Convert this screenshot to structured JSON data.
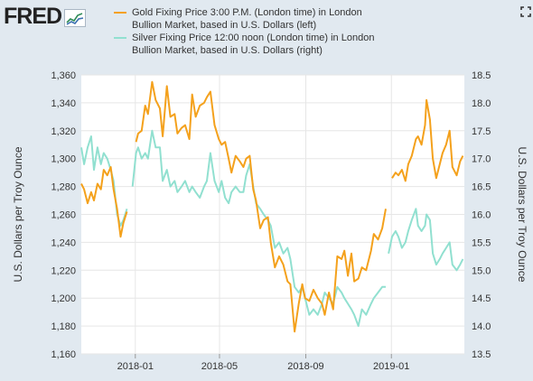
{
  "logo": {
    "text": "FRED"
  },
  "legend": [
    {
      "label": "Gold Fixing Price 3:00 P.M. (London time) in London Bullion Market, based in U.S. Dollars (left)",
      "color": "#f4a11c"
    },
    {
      "label": "Silver Fixing Price 12:00 noon (London time) in London Bullion Market, based in U.S. Dollars (right)",
      "color": "#91e0d0"
    }
  ],
  "icons": {
    "logo": "line-chart-icon",
    "fullscreen": "fullscreen-icon"
  },
  "chart_data": {
    "type": "line",
    "x_ticks": [
      "2018-01",
      "2018-05",
      "2018-09",
      "2019-01"
    ],
    "x_range": [
      "2017-10-16",
      "2019-04-15"
    ],
    "y_left": {
      "label": "U.S. Dollars per Troy Ounce",
      "ticks": [
        "1,160",
        "1,180",
        "1,200",
        "1,220",
        "1,240",
        "1,260",
        "1,280",
        "1,300",
        "1,320",
        "1,340",
        "1,360"
      ],
      "range": [
        1160,
        1360
      ]
    },
    "y_right": {
      "label": "U.S. Dollars per Troy Ounce",
      "ticks": [
        "13.5",
        "14.0",
        "14.5",
        "15.0",
        "15.5",
        "16.0",
        "16.5",
        "17.0",
        "17.5",
        "18.0",
        "18.5"
      ],
      "range": [
        13.5,
        18.5
      ]
    },
    "grid": true,
    "series": [
      {
        "name": "Gold Fixing Price 3:00 P.M. (London time) in London Bullion Market, based in U.S. Dollars (left)",
        "axis": "left",
        "color": "#f4a11c",
        "segments": [
          [
            [
              "2017-10-16",
              1282
            ],
            [
              "2017-10-20",
              1278
            ],
            [
              "2017-10-25",
              1268
            ],
            [
              "2017-10-30",
              1276
            ],
            [
              "2017-11-03",
              1270
            ],
            [
              "2017-11-08",
              1282
            ],
            [
              "2017-11-13",
              1278
            ],
            [
              "2017-11-17",
              1292
            ],
            [
              "2017-11-22",
              1288
            ],
            [
              "2017-11-27",
              1294
            ],
            [
              "2017-12-01",
              1278
            ],
            [
              "2017-12-06",
              1264
            ],
            [
              "2017-12-11",
              1244
            ],
            [
              "2017-12-15",
              1254
            ],
            [
              "2017-12-20",
              1262
            ]
          ],
          [
            [
              "2018-01-02",
              1312
            ],
            [
              "2018-01-05",
              1318
            ],
            [
              "2018-01-10",
              1320
            ],
            [
              "2018-01-15",
              1338
            ],
            [
              "2018-01-19",
              1332
            ],
            [
              "2018-01-25",
              1355
            ],
            [
              "2018-01-30",
              1342
            ],
            [
              "2018-02-05",
              1336
            ],
            [
              "2018-02-09",
              1316
            ],
            [
              "2018-02-15",
              1352
            ],
            [
              "2018-02-20",
              1330
            ],
            [
              "2018-02-26",
              1332
            ],
            [
              "2018-03-02",
              1318
            ],
            [
              "2018-03-08",
              1322
            ],
            [
              "2018-03-13",
              1324
            ],
            [
              "2018-03-19",
              1314
            ],
            [
              "2018-03-23",
              1346
            ],
            [
              "2018-03-28",
              1330
            ],
            [
              "2018-04-03",
              1338
            ],
            [
              "2018-04-09",
              1340
            ],
            [
              "2018-04-13",
              1344
            ],
            [
              "2018-04-18",
              1348
            ],
            [
              "2018-04-24",
              1324
            ],
            [
              "2018-04-30",
              1314
            ],
            [
              "2018-05-04",
              1310
            ],
            [
              "2018-05-09",
              1312
            ],
            [
              "2018-05-14",
              1300
            ],
            [
              "2018-05-18",
              1290
            ],
            [
              "2018-05-24",
              1302
            ],
            [
              "2018-05-30",
              1298
            ],
            [
              "2018-06-04",
              1294
            ],
            [
              "2018-06-08",
              1300
            ],
            [
              "2018-06-13",
              1302
            ],
            [
              "2018-06-18",
              1278
            ],
            [
              "2018-06-22",
              1270
            ],
            [
              "2018-06-28",
              1250
            ],
            [
              "2018-07-03",
              1256
            ],
            [
              "2018-07-09",
              1258
            ],
            [
              "2018-07-13",
              1240
            ],
            [
              "2018-07-19",
              1222
            ],
            [
              "2018-07-25",
              1230
            ],
            [
              "2018-07-31",
              1224
            ],
            [
              "2018-08-06",
              1212
            ],
            [
              "2018-08-10",
              1210
            ],
            [
              "2018-08-16",
              1176
            ],
            [
              "2018-08-22",
              1196
            ],
            [
              "2018-08-27",
              1210
            ],
            [
              "2018-08-31",
              1200
            ],
            [
              "2018-09-06",
              1198
            ],
            [
              "2018-09-12",
              1206
            ],
            [
              "2018-09-18",
              1200
            ],
            [
              "2018-09-24",
              1196
            ],
            [
              "2018-09-28",
              1188
            ],
            [
              "2018-10-04",
              1204
            ],
            [
              "2018-10-10",
              1192
            ],
            [
              "2018-10-16",
              1230
            ],
            [
              "2018-10-22",
              1228
            ],
            [
              "2018-10-26",
              1234
            ],
            [
              "2018-10-31",
              1216
            ],
            [
              "2018-11-05",
              1232
            ],
            [
              "2018-11-09",
              1212
            ],
            [
              "2018-11-15",
              1214
            ],
            [
              "2018-11-20",
              1222
            ],
            [
              "2018-11-26",
              1220
            ],
            [
              "2018-12-03",
              1234
            ],
            [
              "2018-12-07",
              1246
            ],
            [
              "2018-12-13",
              1242
            ],
            [
              "2018-12-19",
              1250
            ],
            [
              "2018-12-24",
              1264
            ]
          ],
          [
            [
              "2019-01-02",
              1286
            ],
            [
              "2019-01-07",
              1290
            ],
            [
              "2019-01-11",
              1288
            ],
            [
              "2019-01-16",
              1292
            ],
            [
              "2019-01-21",
              1284
            ],
            [
              "2019-01-25",
              1296
            ],
            [
              "2019-01-30",
              1302
            ],
            [
              "2019-02-05",
              1314
            ],
            [
              "2019-02-08",
              1316
            ],
            [
              "2019-02-13",
              1310
            ],
            [
              "2019-02-18",
              1324
            ],
            [
              "2019-02-20",
              1342
            ],
            [
              "2019-02-25",
              1328
            ],
            [
              "2019-03-01",
              1300
            ],
            [
              "2019-03-06",
              1286
            ],
            [
              "2019-03-11",
              1296
            ],
            [
              "2019-03-15",
              1304
            ],
            [
              "2019-03-20",
              1310
            ],
            [
              "2019-03-25",
              1320
            ],
            [
              "2019-03-29",
              1294
            ],
            [
              "2019-04-04",
              1288
            ],
            [
              "2019-04-09",
              1298
            ],
            [
              "2019-04-13",
              1302
            ]
          ]
        ]
      },
      {
        "name": "Silver Fixing Price 12:00 noon (London time) in London Bullion Market, based in U.S. Dollars (right)",
        "axis": "right",
        "color": "#91e0d0",
        "segments": [
          [
            [
              "2017-10-16",
              17.2
            ],
            [
              "2017-10-20",
              16.9
            ],
            [
              "2017-10-25",
              17.2
            ],
            [
              "2017-10-30",
              17.4
            ],
            [
              "2017-11-03",
              16.8
            ],
            [
              "2017-11-08",
              17.2
            ],
            [
              "2017-11-13",
              16.9
            ],
            [
              "2017-11-17",
              17.1
            ],
            [
              "2017-11-22",
              17.0
            ],
            [
              "2017-11-27",
              16.8
            ],
            [
              "2017-12-01",
              16.6
            ],
            [
              "2017-12-06",
              16.0
            ],
            [
              "2017-12-11",
              15.8
            ],
            [
              "2017-12-15",
              15.9
            ],
            [
              "2017-12-20",
              16.1
            ]
          ],
          [
            [
              "2017-12-28",
              16.5
            ],
            [
              "2018-01-02",
              17.1
            ],
            [
              "2018-01-05",
              17.2
            ],
            [
              "2018-01-10",
              17.0
            ],
            [
              "2018-01-15",
              17.1
            ],
            [
              "2018-01-19",
              17.0
            ],
            [
              "2018-01-25",
              17.5
            ],
            [
              "2018-01-30",
              17.2
            ],
            [
              "2018-02-05",
              17.2
            ],
            [
              "2018-02-09",
              16.6
            ],
            [
              "2018-02-15",
              16.8
            ],
            [
              "2018-02-20",
              16.5
            ],
            [
              "2018-02-26",
              16.6
            ],
            [
              "2018-03-02",
              16.4
            ],
            [
              "2018-03-08",
              16.5
            ],
            [
              "2018-03-13",
              16.6
            ],
            [
              "2018-03-19",
              16.4
            ],
            [
              "2018-03-23",
              16.5
            ],
            [
              "2018-03-28",
              16.4
            ],
            [
              "2018-04-03",
              16.3
            ],
            [
              "2018-04-09",
              16.5
            ],
            [
              "2018-04-13",
              16.6
            ],
            [
              "2018-04-18",
              17.1
            ],
            [
              "2018-04-24",
              16.6
            ],
            [
              "2018-04-30",
              16.4
            ],
            [
              "2018-05-04",
              16.6
            ],
            [
              "2018-05-09",
              16.3
            ],
            [
              "2018-05-14",
              16.2
            ],
            [
              "2018-05-18",
              16.4
            ],
            [
              "2018-05-24",
              16.5
            ],
            [
              "2018-05-30",
              16.4
            ],
            [
              "2018-06-04",
              16.4
            ],
            [
              "2018-06-08",
              16.7
            ],
            [
              "2018-06-13",
              16.9
            ],
            [
              "2018-06-18",
              16.5
            ],
            [
              "2018-06-22",
              16.2
            ],
            [
              "2018-06-28",
              16.1
            ],
            [
              "2018-07-03",
              16.0
            ],
            [
              "2018-07-09",
              15.9
            ],
            [
              "2018-07-13",
              15.8
            ],
            [
              "2018-07-19",
              15.4
            ],
            [
              "2018-07-25",
              15.5
            ],
            [
              "2018-07-31",
              15.3
            ],
            [
              "2018-08-06",
              15.4
            ],
            [
              "2018-08-10",
              15.2
            ],
            [
              "2018-08-16",
              14.7
            ],
            [
              "2018-08-22",
              14.6
            ],
            [
              "2018-08-27",
              14.7
            ],
            [
              "2018-08-31",
              14.5
            ],
            [
              "2018-09-06",
              14.2
            ],
            [
              "2018-09-12",
              14.3
            ],
            [
              "2018-09-18",
              14.2
            ],
            [
              "2018-09-24",
              14.4
            ],
            [
              "2018-09-28",
              14.6
            ],
            [
              "2018-10-04",
              14.5
            ],
            [
              "2018-10-10",
              14.4
            ],
            [
              "2018-10-16",
              14.7
            ],
            [
              "2018-10-22",
              14.6
            ],
            [
              "2018-10-26",
              14.5
            ],
            [
              "2018-10-31",
              14.4
            ],
            [
              "2018-11-05",
              14.3
            ],
            [
              "2018-11-09",
              14.2
            ],
            [
              "2018-11-15",
              14.0
            ],
            [
              "2018-11-20",
              14.3
            ],
            [
              "2018-11-26",
              14.2
            ],
            [
              "2018-12-03",
              14.4
            ],
            [
              "2018-12-07",
              14.5
            ],
            [
              "2018-12-13",
              14.6
            ],
            [
              "2018-12-19",
              14.7
            ],
            [
              "2018-12-24",
              14.7
            ]
          ],
          [
            [
              "2018-12-28",
              15.3
            ],
            [
              "2019-01-02",
              15.6
            ],
            [
              "2019-01-07",
              15.7
            ],
            [
              "2019-01-11",
              15.6
            ],
            [
              "2019-01-16",
              15.4
            ],
            [
              "2019-01-21",
              15.5
            ],
            [
              "2019-01-25",
              15.7
            ],
            [
              "2019-01-30",
              15.9
            ],
            [
              "2019-02-05",
              16.1
            ],
            [
              "2019-02-08",
              15.8
            ],
            [
              "2019-02-13",
              15.7
            ],
            [
              "2019-02-18",
              15.8
            ],
            [
              "2019-02-20",
              16.0
            ],
            [
              "2019-02-25",
              15.9
            ],
            [
              "2019-03-01",
              15.3
            ],
            [
              "2019-03-06",
              15.1
            ],
            [
              "2019-03-11",
              15.2
            ],
            [
              "2019-03-15",
              15.3
            ],
            [
              "2019-03-20",
              15.4
            ],
            [
              "2019-03-25",
              15.5
            ],
            [
              "2019-03-29",
              15.1
            ],
            [
              "2019-04-04",
              15.0
            ],
            [
              "2019-04-09",
              15.1
            ],
            [
              "2019-04-13",
              15.2
            ]
          ]
        ]
      }
    ]
  }
}
